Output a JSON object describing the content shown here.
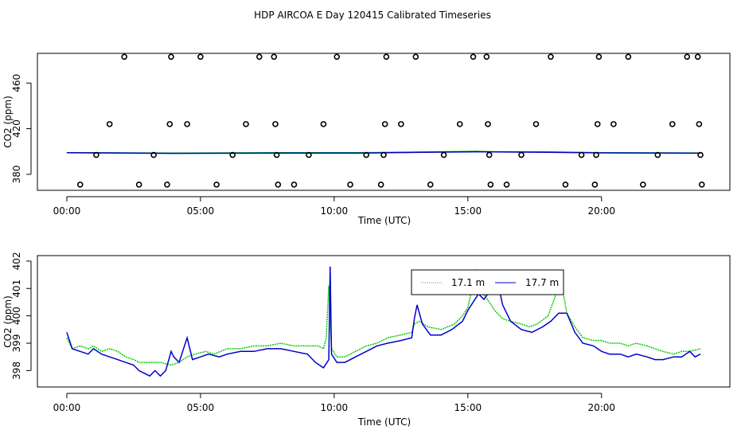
{
  "title": "HDP AIRCOA E  Day 120415  Calibrated Timeseries",
  "chart_data": [
    {
      "type": "scatter",
      "xlabel": "Time (UTC)",
      "ylabel": "CO2 (ppm)",
      "xlim": [
        -1.1,
        24.8
      ],
      "ylim": [
        366,
        486
      ],
      "x_ticks": [
        0,
        5,
        10,
        15,
        20
      ],
      "x_tick_labels": [
        "00:00",
        "05:00",
        "10:00",
        "15:00",
        "20:00"
      ],
      "y_ticks": [
        380,
        420,
        460
      ],
      "y_tick_labels": [
        "380",
        "420",
        "460"
      ],
      "marker_colors": {
        "points": "#000000"
      },
      "points": [
        [
          0.5,
          371
        ],
        [
          1.1,
          397
        ],
        [
          1.6,
          424
        ],
        [
          2.15,
          483
        ],
        [
          2.7,
          371
        ],
        [
          3.25,
          397
        ],
        [
          3.75,
          371
        ],
        [
          3.85,
          424
        ],
        [
          3.9,
          483
        ],
        [
          4.5,
          424
        ],
        [
          5.0,
          483
        ],
        [
          5.6,
          371
        ],
        [
          6.2,
          397
        ],
        [
          6.7,
          424
        ],
        [
          7.2,
          483
        ],
        [
          7.75,
          483
        ],
        [
          7.8,
          424
        ],
        [
          7.85,
          397
        ],
        [
          7.9,
          371
        ],
        [
          8.5,
          371
        ],
        [
          9.05,
          397
        ],
        [
          9.6,
          424
        ],
        [
          10.1,
          483
        ],
        [
          10.6,
          371
        ],
        [
          11.2,
          397
        ],
        [
          11.75,
          371
        ],
        [
          11.85,
          397
        ],
        [
          11.9,
          424
        ],
        [
          11.95,
          483
        ],
        [
          12.5,
          424
        ],
        [
          13.05,
          483
        ],
        [
          13.6,
          371
        ],
        [
          14.1,
          397
        ],
        [
          14.7,
          424
        ],
        [
          15.2,
          483
        ],
        [
          15.7,
          483
        ],
        [
          15.75,
          424
        ],
        [
          15.8,
          397
        ],
        [
          15.85,
          371
        ],
        [
          16.45,
          371
        ],
        [
          17.0,
          397
        ],
        [
          17.55,
          424
        ],
        [
          18.1,
          483
        ],
        [
          18.65,
          371
        ],
        [
          19.25,
          397
        ],
        [
          19.75,
          371
        ],
        [
          19.8,
          397
        ],
        [
          19.85,
          424
        ],
        [
          19.9,
          483
        ],
        [
          20.45,
          424
        ],
        [
          21.0,
          483
        ],
        [
          21.55,
          371
        ],
        [
          22.1,
          397
        ],
        [
          22.65,
          424
        ],
        [
          23.2,
          483
        ],
        [
          23.6,
          483
        ],
        [
          23.65,
          424
        ],
        [
          23.7,
          397
        ],
        [
          23.75,
          371
        ]
      ],
      "series": [
        {
          "name": "17.1 m",
          "color": "#00cc00",
          "points": [
            [
              0,
              399.0
            ],
            [
              4,
              398.6
            ],
            [
              8,
              398.9
            ],
            [
              11,
              398.9
            ],
            [
              13,
              399.5
            ],
            [
              15.3,
              400.2
            ],
            [
              16,
              399.8
            ],
            [
              18,
              399.6
            ],
            [
              20,
              399.0
            ],
            [
              23.7,
              398.7
            ]
          ]
        },
        {
          "name": "17.7 m",
          "color": "#0000cc",
          "points": [
            [
              0,
              398.9
            ],
            [
              4,
              398.4
            ],
            [
              8,
              398.6
            ],
            [
              11,
              398.6
            ],
            [
              13,
              399.2
            ],
            [
              15.3,
              399.8
            ],
            [
              16,
              399.6
            ],
            [
              18,
              399.3
            ],
            [
              20,
              398.8
            ],
            [
              23.7,
              398.5
            ]
          ]
        }
      ]
    },
    {
      "type": "line",
      "xlabel": "Time (UTC)",
      "ylabel": "CO2 (ppm)",
      "xlim": [
        -1.1,
        24.8
      ],
      "ylim": [
        397.4,
        402.2
      ],
      "x_ticks": [
        0,
        5,
        10,
        15,
        20
      ],
      "x_tick_labels": [
        "00:00",
        "05:00",
        "10:00",
        "15:00",
        "20:00"
      ],
      "y_ticks": [
        398,
        399,
        400,
        401,
        402
      ],
      "y_tick_labels": [
        "398",
        "399",
        "400",
        "401",
        "402"
      ],
      "legend": "top-center",
      "series": [
        {
          "name": "17.1 m",
          "color": "#00cc00",
          "style": "dotted",
          "points": [
            [
              0.0,
              399.2
            ],
            [
              0.2,
              398.8
            ],
            [
              0.5,
              398.9
            ],
            [
              0.8,
              398.8
            ],
            [
              1.0,
              398.9
            ],
            [
              1.3,
              398.7
            ],
            [
              1.6,
              398.8
            ],
            [
              1.9,
              398.7
            ],
            [
              2.2,
              398.5
            ],
            [
              2.5,
              398.4
            ],
            [
              2.7,
              398.3
            ],
            [
              3.0,
              398.3
            ],
            [
              3.5,
              398.3
            ],
            [
              3.9,
              398.2
            ],
            [
              4.2,
              398.3
            ],
            [
              4.5,
              398.5
            ],
            [
              4.8,
              398.6
            ],
            [
              5.2,
              398.7
            ],
            [
              5.5,
              398.6
            ],
            [
              6.0,
              398.8
            ],
            [
              6.5,
              398.8
            ],
            [
              7.0,
              398.9
            ],
            [
              7.5,
              398.9
            ],
            [
              8.0,
              399.0
            ],
            [
              8.5,
              398.9
            ],
            [
              9.0,
              398.9
            ],
            [
              9.4,
              398.9
            ],
            [
              9.6,
              398.8
            ],
            [
              9.7,
              399.2
            ],
            [
              9.8,
              401.1
            ],
            [
              9.9,
              398.8
            ],
            [
              10.1,
              398.5
            ],
            [
              10.4,
              398.5
            ],
            [
              10.8,
              398.7
            ],
            [
              11.2,
              398.9
            ],
            [
              11.6,
              399.0
            ],
            [
              12.0,
              399.2
            ],
            [
              12.5,
              399.3
            ],
            [
              12.9,
              399.4
            ],
            [
              13.0,
              399.7
            ],
            [
              13.2,
              399.8
            ],
            [
              13.5,
              399.6
            ],
            [
              14.0,
              399.5
            ],
            [
              14.5,
              399.7
            ],
            [
              14.8,
              400.0
            ],
            [
              15.0,
              400.3
            ],
            [
              15.2,
              401.2
            ],
            [
              15.3,
              401.7
            ],
            [
              15.5,
              400.9
            ],
            [
              15.8,
              400.5
            ],
            [
              16.0,
              400.2
            ],
            [
              16.3,
              399.9
            ],
            [
              16.6,
              399.8
            ],
            [
              17.0,
              399.7
            ],
            [
              17.3,
              399.6
            ],
            [
              17.6,
              399.7
            ],
            [
              18.0,
              400.0
            ],
            [
              18.3,
              400.8
            ],
            [
              18.5,
              401.2
            ],
            [
              18.7,
              400.1
            ],
            [
              19.0,
              399.6
            ],
            [
              19.3,
              399.2
            ],
            [
              19.7,
              399.1
            ],
            [
              20.0,
              399.1
            ],
            [
              20.3,
              399.0
            ],
            [
              20.7,
              399.0
            ],
            [
              21.0,
              398.9
            ],
            [
              21.3,
              399.0
            ],
            [
              21.7,
              398.9
            ],
            [
              22.0,
              398.8
            ],
            [
              22.3,
              398.7
            ],
            [
              22.7,
              398.6
            ],
            [
              23.0,
              398.7
            ],
            [
              23.3,
              398.7
            ],
            [
              23.7,
              398.8
            ]
          ]
        },
        {
          "name": "17.7 m",
          "color": "#0000cc",
          "style": "solid",
          "points": [
            [
              0.0,
              399.4
            ],
            [
              0.2,
              398.8
            ],
            [
              0.5,
              398.7
            ],
            [
              0.8,
              398.6
            ],
            [
              1.0,
              398.8
            ],
            [
              1.3,
              398.6
            ],
            [
              1.6,
              398.5
            ],
            [
              1.9,
              398.4
            ],
            [
              2.2,
              398.3
            ],
            [
              2.5,
              398.2
            ],
            [
              2.7,
              398.0
            ],
            [
              2.9,
              397.9
            ],
            [
              3.1,
              397.8
            ],
            [
              3.3,
              398.0
            ],
            [
              3.5,
              397.8
            ],
            [
              3.7,
              398.0
            ],
            [
              3.9,
              398.7
            ],
            [
              4.0,
              398.5
            ],
            [
              4.2,
              398.3
            ],
            [
              4.5,
              399.2
            ],
            [
              4.7,
              398.4
            ],
            [
              5.0,
              398.5
            ],
            [
              5.3,
              398.6
            ],
            [
              5.7,
              398.5
            ],
            [
              6.0,
              398.6
            ],
            [
              6.5,
              398.7
            ],
            [
              7.0,
              398.7
            ],
            [
              7.5,
              398.8
            ],
            [
              8.0,
              398.8
            ],
            [
              8.5,
              398.7
            ],
            [
              9.0,
              398.6
            ],
            [
              9.3,
              398.3
            ],
            [
              9.6,
              398.1
            ],
            [
              9.8,
              398.4
            ],
            [
              9.85,
              401.8
            ],
            [
              9.9,
              398.6
            ],
            [
              10.1,
              398.3
            ],
            [
              10.4,
              398.3
            ],
            [
              10.8,
              398.5
            ],
            [
              11.2,
              398.7
            ],
            [
              11.6,
              398.9
            ],
            [
              12.0,
              399.0
            ],
            [
              12.5,
              399.1
            ],
            [
              12.9,
              399.2
            ],
            [
              13.0,
              399.9
            ],
            [
              13.1,
              400.4
            ],
            [
              13.3,
              399.7
            ],
            [
              13.6,
              399.3
            ],
            [
              14.0,
              399.3
            ],
            [
              14.4,
              399.5
            ],
            [
              14.8,
              399.8
            ],
            [
              15.0,
              400.2
            ],
            [
              15.2,
              400.5
            ],
            [
              15.4,
              400.8
            ],
            [
              15.6,
              400.6
            ],
            [
              15.9,
              401.0
            ],
            [
              16.1,
              401.3
            ],
            [
              16.3,
              400.4
            ],
            [
              16.6,
              399.8
            ],
            [
              17.0,
              399.5
            ],
            [
              17.4,
              399.4
            ],
            [
              17.8,
              399.6
            ],
            [
              18.1,
              399.8
            ],
            [
              18.4,
              400.1
            ],
            [
              18.7,
              400.1
            ],
            [
              19.0,
              399.4
            ],
            [
              19.3,
              399.0
            ],
            [
              19.7,
              398.9
            ],
            [
              20.0,
              398.7
            ],
            [
              20.3,
              398.6
            ],
            [
              20.7,
              398.6
            ],
            [
              21.0,
              398.5
            ],
            [
              21.3,
              398.6
            ],
            [
              21.7,
              398.5
            ],
            [
              22.0,
              398.4
            ],
            [
              22.3,
              398.4
            ],
            [
              22.7,
              398.5
            ],
            [
              23.0,
              398.5
            ],
            [
              23.3,
              398.7
            ],
            [
              23.5,
              398.5
            ],
            [
              23.7,
              398.6
            ]
          ]
        }
      ]
    }
  ]
}
